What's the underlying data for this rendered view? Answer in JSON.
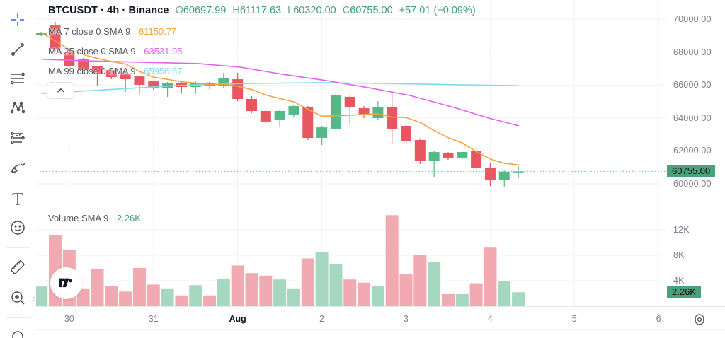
{
  "colors": {
    "up": "#53b987",
    "down": "#e8565f",
    "vol_up": "#a6d8c1",
    "vol_down": "#f2a9b2",
    "ma7": "#f5a341",
    "ma25": "#e562ef",
    "ma99": "#7fdceb",
    "grid": "#f0f2f5",
    "border": "#e4e7ec",
    "pane_divider": "#eaedf1",
    "badge_bg": "#4ba179",
    "accent_crosshair": "#2962ff",
    "price_line": "#53b987"
  },
  "toolbar": {
    "items": [
      {
        "name": "crosshair",
        "active": true
      },
      {
        "name": "trend-line"
      },
      {
        "name": "fib-retracement"
      },
      {
        "name": "xabcd-pattern"
      },
      {
        "name": "forecast"
      },
      {
        "name": "brush"
      },
      {
        "name": "text"
      },
      {
        "name": "emoji"
      },
      {
        "name": "ruler"
      },
      {
        "name": "zoom-in"
      },
      {
        "name": "magnet"
      }
    ]
  },
  "legend": {
    "symbol_line": "BTCUSDT · 4h · Binance",
    "ohlc": [
      {
        "k": "O",
        "v": "60697.99"
      },
      {
        "k": "H",
        "v": "61117.63"
      },
      {
        "k": "L",
        "v": "60320.00"
      },
      {
        "k": "C",
        "v": "60755.00"
      }
    ],
    "change": "+57.01 (+0.09%)",
    "ma_rows": [
      {
        "label": "MA 7 close 0 SMA 9",
        "value": "61150.77",
        "color": "#f5a341"
      },
      {
        "label": "MA 25 close 0 SMA 9",
        "value": "63531.95",
        "color": "#e562ef"
      },
      {
        "label": "MA 99 close 0 SMA 9",
        "value": "65956.87",
        "color": "#7fdceb"
      }
    ],
    "volume_label": "Volume SMA 9",
    "volume_value": "2.26K"
  },
  "price_axis": {
    "labels": [
      "70000.00",
      "68000.00",
      "66000.00",
      "64000.00",
      "62000.00",
      "60000.00"
    ],
    "values": [
      70000,
      68000,
      66000,
      64000,
      62000,
      60000
    ],
    "badge": "60755.00"
  },
  "volume_axis": {
    "labels": [
      "12K",
      "8K",
      "4K"
    ],
    "values_k": [
      12,
      8,
      4
    ],
    "badge": "2.26K"
  },
  "chart_data": {
    "type": "candlestick+volume",
    "symbol": "BTCUSDT",
    "interval": "4h",
    "exchange": "Binance",
    "last_price": 60755.0,
    "volume_sma_k": 2.26,
    "price_axis_range": [
      70000,
      60000
    ],
    "day_ticks": [
      {
        "label": "30"
      },
      {
        "label": "31"
      },
      {
        "label": "Aug",
        "emphasis": true
      },
      {
        "label": "2"
      },
      {
        "label": "3"
      },
      {
        "label": "4"
      },
      {
        "label": "5"
      },
      {
        "label": "6"
      }
    ],
    "candles": [
      [
        69010,
        69230,
        68970,
        69185
      ],
      [
        69610,
        69830,
        67980,
        68160
      ],
      [
        67980,
        68160,
        66870,
        67125
      ],
      [
        67550,
        67640,
        66650,
        66910
      ],
      [
        67125,
        67170,
        65920,
        66700
      ],
      [
        66910,
        66990,
        66350,
        66480
      ],
      [
        66650,
        66740,
        65580,
        66350
      ],
      [
        66520,
        66560,
        65450,
        66010
      ],
      [
        66220,
        66270,
        65710,
        65795
      ],
      [
        65795,
        66190,
        65280,
        66140
      ],
      [
        66140,
        66200,
        65490,
        65880
      ],
      [
        65880,
        66220,
        65450,
        66140
      ],
      [
        66140,
        66200,
        65750,
        65925
      ],
      [
        65925,
        66740,
        65840,
        66440
      ],
      [
        66350,
        66740,
        65020,
        65150
      ],
      [
        65150,
        65320,
        64290,
        64420
      ],
      [
        64420,
        64500,
        63650,
        63780
      ],
      [
        63863,
        64480,
        63430,
        64421
      ],
      [
        64210,
        64790,
        64060,
        64720
      ],
      [
        64640,
        64720,
        62660,
        62790
      ],
      [
        62790,
        63520,
        62360,
        63430
      ],
      [
        63305,
        65665,
        63220,
        65365
      ],
      [
        65280,
        65400,
        63560,
        64635
      ],
      [
        64590,
        64720,
        63990,
        64165
      ],
      [
        63990,
        65020,
        63900,
        64635
      ],
      [
        64635,
        65495,
        62445,
        63350
      ],
      [
        63520,
        63610,
        62445,
        62575
      ],
      [
        62660,
        62750,
        61200,
        61375
      ],
      [
        61415,
        62000,
        60430,
        61930
      ],
      [
        61845,
        61930,
        61460,
        61590
      ],
      [
        61590,
        62000,
        61500,
        61930
      ],
      [
        62015,
        62230,
        60860,
        60945
      ],
      [
        60945,
        61290,
        59870,
        60215
      ],
      [
        60215,
        60800,
        59785,
        60730
      ],
      [
        60700,
        61070,
        60340,
        60755
      ]
    ],
    "volumes_k": [
      3.1,
      11.2,
      8.9,
      2.8,
      5.9,
      3.2,
      2.3,
      6.0,
      3.4,
      2.8,
      1.7,
      3.3,
      1.7,
      4.3,
      6.4,
      5.2,
      4.8,
      4.2,
      2.8,
      7.5,
      8.5,
      6.6,
      4.2,
      3.7,
      3.2,
      14.3,
      5.0,
      8.0,
      7.0,
      1.9,
      1.9,
      3.6,
      9.2,
      4.0,
      2.2
    ],
    "ma7": "sma7_of_closes",
    "ma25_points": [
      [
        0.1,
        67560
      ],
      [
        3.1,
        67470
      ],
      [
        7.2,
        67380
      ],
      [
        11.2,
        67300
      ],
      [
        14.2,
        67080
      ],
      [
        17.2,
        66650
      ],
      [
        20.3,
        66270
      ],
      [
        23.3,
        65840
      ],
      [
        26.3,
        65360
      ],
      [
        29.4,
        64640
      ],
      [
        31.9,
        63990
      ],
      [
        34,
        63532
      ]
    ],
    "ma99_points": [
      [
        0.1,
        65490
      ],
      [
        4.6,
        65710
      ],
      [
        9.7,
        65970
      ],
      [
        14.7,
        66090
      ],
      [
        19.8,
        66140
      ],
      [
        24.8,
        66090
      ],
      [
        29.9,
        66010
      ],
      [
        34,
        65957
      ]
    ]
  }
}
